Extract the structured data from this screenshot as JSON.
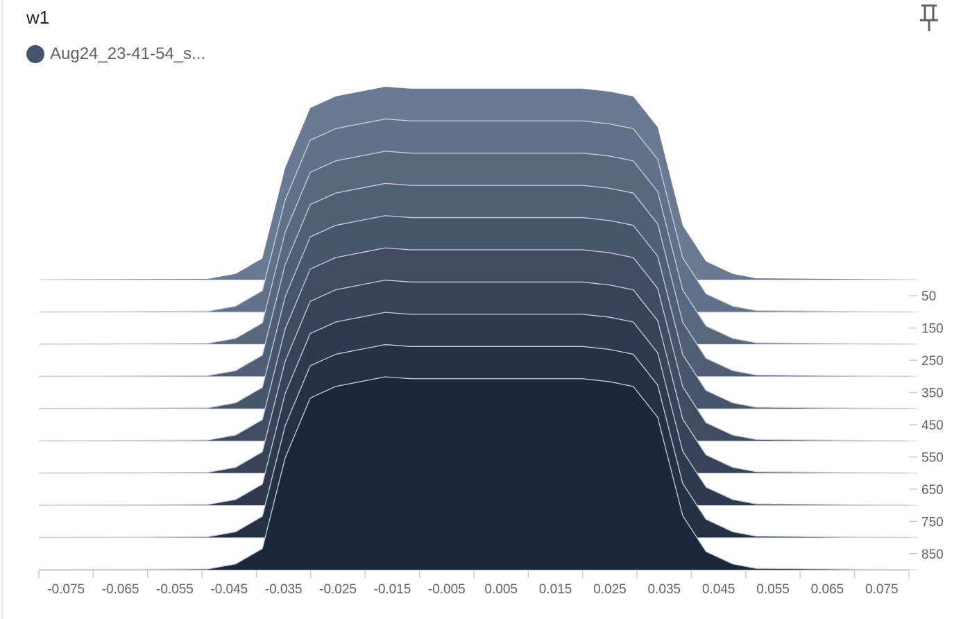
{
  "card": {
    "title": "w1",
    "pin_icon": "pin-icon"
  },
  "legend": {
    "run": "Aug24_23-41-54_s...",
    "color": "#46536d"
  },
  "chart_data": {
    "type": "histogram-offset",
    "title": "w1",
    "xlim": [
      -0.08,
      0.08
    ],
    "x_tick_labels": [
      "-0.075",
      "-0.065",
      "-0.055",
      "-0.045",
      "-0.035",
      "-0.025",
      "-0.015",
      "-0.005",
      "0.005",
      "0.015",
      "0.025",
      "0.035",
      "0.045",
      "0.055",
      "0.065",
      "0.075"
    ],
    "x_tick_values": [
      -0.075,
      -0.065,
      -0.055,
      -0.045,
      -0.035,
      -0.025,
      -0.015,
      -0.005,
      0.005,
      0.015,
      0.025,
      0.035,
      0.045,
      0.055,
      0.065,
      0.075
    ],
    "step_tick_labels": [
      "50",
      "150",
      "250",
      "350",
      "450",
      "550",
      "650",
      "750",
      "850"
    ],
    "step_tick_values": [
      50,
      150,
      250,
      350,
      450,
      550,
      650,
      750,
      850
    ],
    "steps": [
      0,
      100,
      200,
      300,
      400,
      500,
      600,
      700,
      800,
      900
    ],
    "bins_x": [
      -0.08,
      -0.0489,
      -0.0438,
      -0.0389,
      -0.0347,
      -0.0301,
      -0.0254,
      -0.0163,
      -0.0116,
      0.0022,
      0.0149,
      0.02,
      0.0249,
      0.0293,
      0.0338,
      0.0384,
      0.0427,
      0.0476,
      0.0519,
      0.08
    ],
    "relative_density": [
      0,
      0.004,
      0.03,
      0.11,
      0.58,
      0.89,
      0.95,
      1.0,
      0.99,
      0.99,
      0.99,
      0.99,
      0.975,
      0.95,
      0.79,
      0.28,
      0.094,
      0.03,
      0.007,
      0
    ],
    "colors": {
      "back": "#6b7a93",
      "front": "#1b283b",
      "outline": "#c8d0dc",
      "baseline": "#e6e6e6"
    }
  }
}
